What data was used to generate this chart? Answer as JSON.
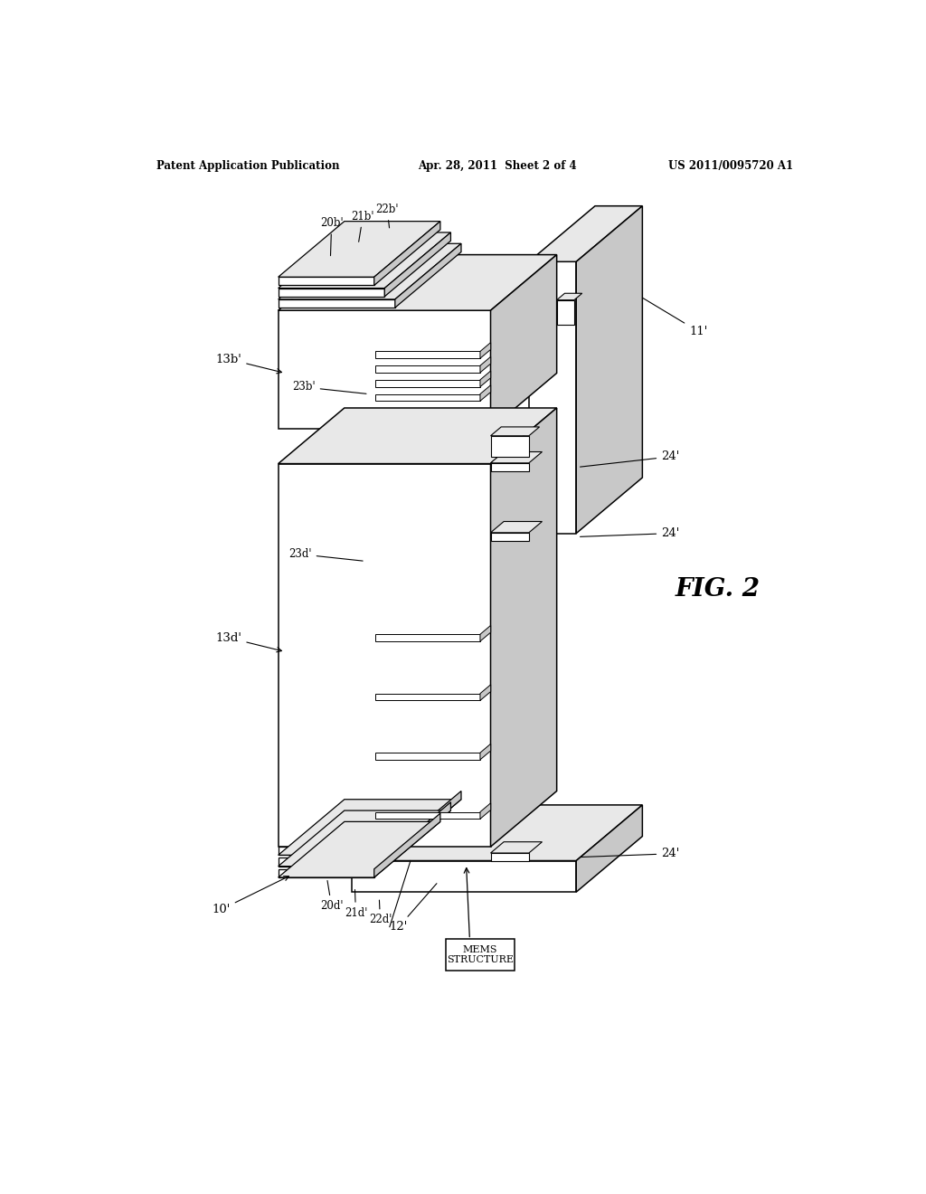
{
  "header_left": "Patent Application Publication",
  "header_mid": "Apr. 28, 2011  Sheet 2 of 4",
  "header_right": "US 2011/0095720 A1",
  "fig_label": "FIG. 2",
  "bg_color": "#ffffff",
  "line_color": "#000000",
  "fill_light": "#e8e8e8",
  "fill_mid": "#c8c8c8",
  "fill_dark": "#a8a8a8",
  "labels": {
    "10p": "10'",
    "11p": "11'",
    "12p": "12'",
    "13bp": "13b'",
    "13dp": "13d'",
    "20bp": "20b'",
    "21bp": "21b'",
    "22bp": "22b'",
    "23bp": "23b'",
    "20dp": "20d'",
    "21dp": "21d'",
    "22dp": "22d'",
    "23dp": "23d'",
    "24p": "24'",
    "mems": "MEMS\nSTRUCTURE"
  }
}
